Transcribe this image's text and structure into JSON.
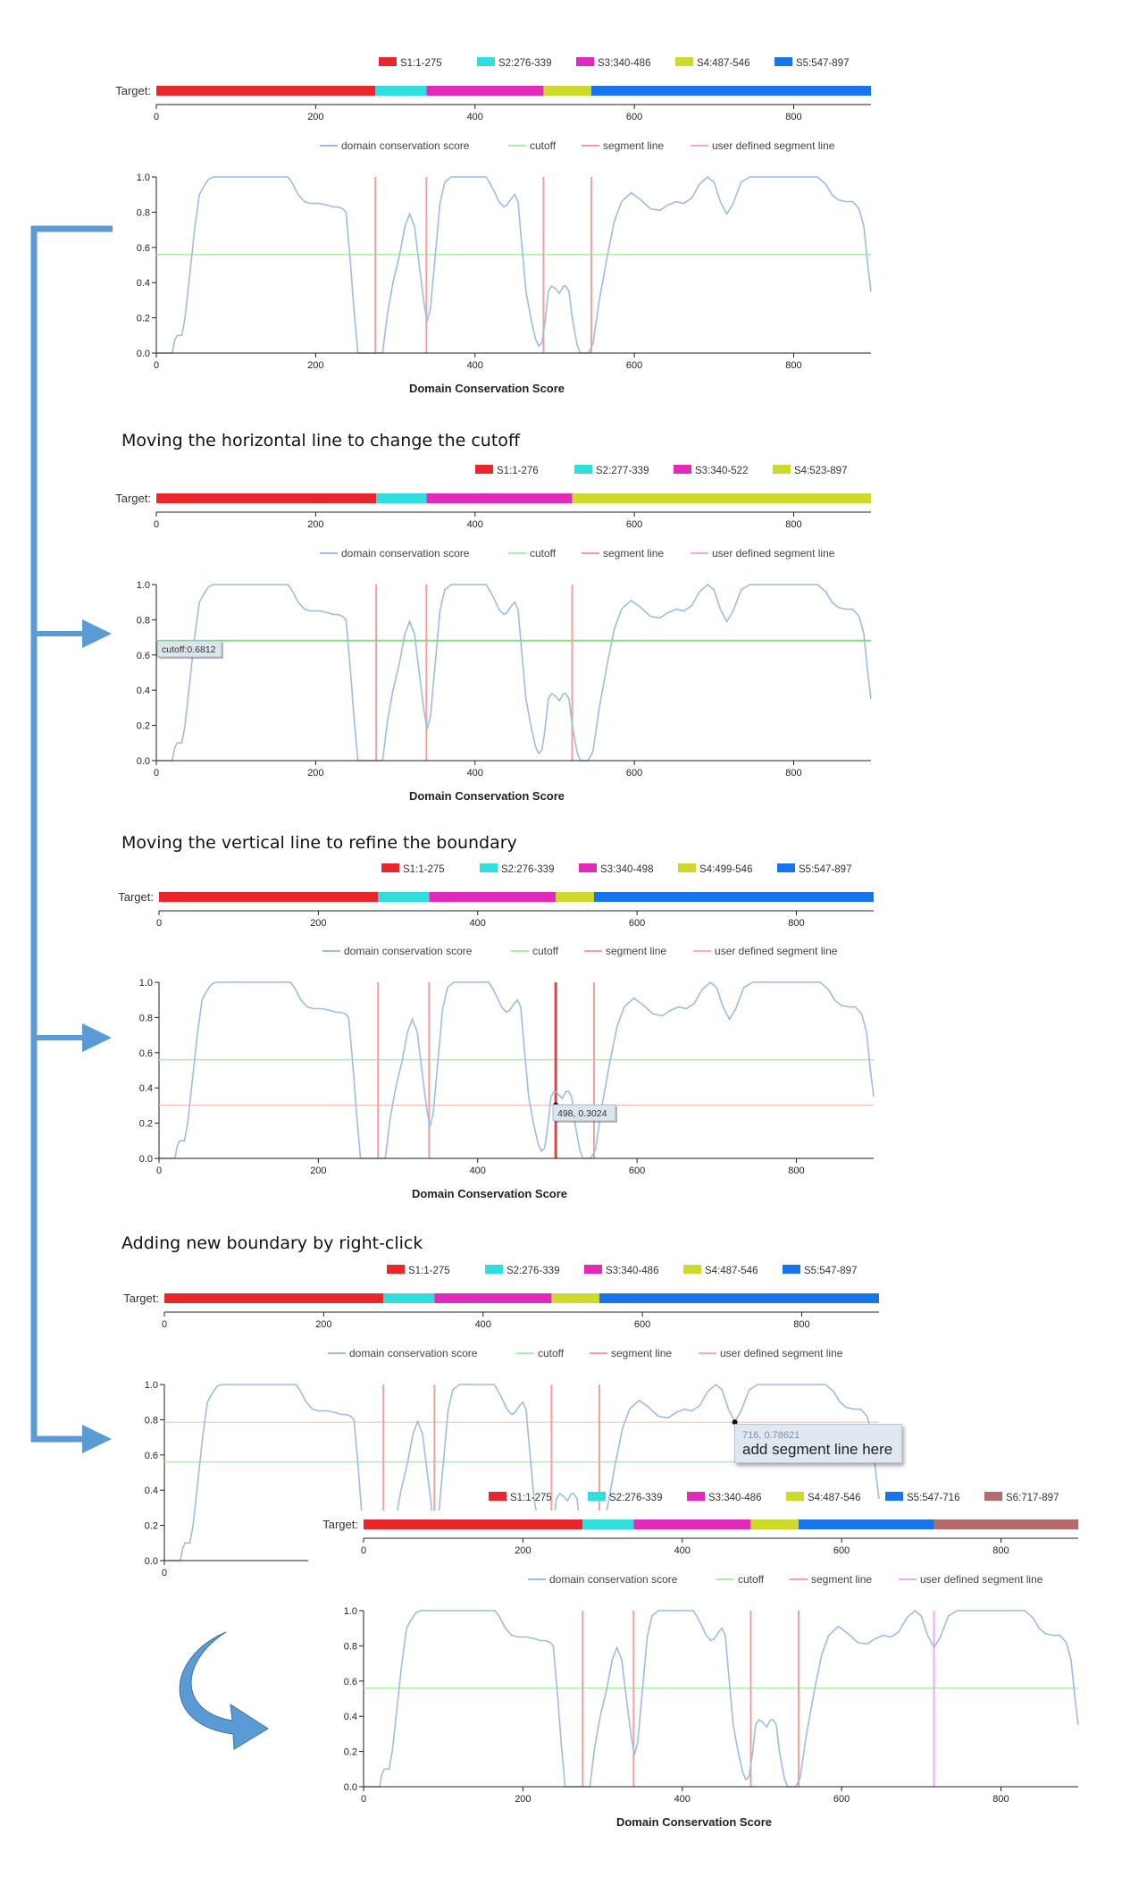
{
  "colors": {
    "S1": "#e8262c",
    "S2": "#30dedd",
    "S3": "#e22aba",
    "S4": "#cdd92b",
    "S5": "#1774eb",
    "S6": "#b56b6b",
    "conservation": "#9cbce8",
    "cutoff": "#a8f0a8",
    "segment": "#f4a09a",
    "user_segment": "#f3a8ee",
    "active_segment": "#ee3b3b",
    "arrow": "#5b9bd5"
  },
  "legend_labels": {
    "conservation": "domain conservation score",
    "cutoff": "cutoff",
    "segment": "segment line",
    "user_segment": "user defined segment line"
  },
  "target_label": "Target:",
  "xlabel": "Domain Conservation Score",
  "x_ticks": [
    "0",
    "200",
    "400",
    "600",
    "800"
  ],
  "y_ticks": [
    "0.0",
    "0.2",
    "0.4",
    "0.6",
    "0.8",
    "1.0"
  ],
  "captions": {
    "cutoff": "Moving the horizontal line to change the cutoff",
    "vertical": "Moving  the vertical line to refine the boundary",
    "rightclick": "Adding new boundary by right-click"
  },
  "tooltips": {
    "cutoff": "cutoff:0.6812",
    "vertical": "498, 0.3024",
    "rightclick_coords": "716, 0.78621",
    "rightclick_action": "add segment line here"
  },
  "chart_data": [
    {
      "type": "line",
      "title": "Domain Conservation Score",
      "segments": [
        {
          "name": "S1:1-275",
          "start": 1,
          "end": 275
        },
        {
          "name": "S2:276-339",
          "start": 276,
          "end": 339
        },
        {
          "name": "S3:340-486",
          "start": 340,
          "end": 486
        },
        {
          "name": "S4:487-546",
          "start": 487,
          "end": 546
        },
        {
          "name": "S5:547-897",
          "start": 547,
          "end": 897
        }
      ],
      "cutoff": 0.56,
      "segment_lines": [
        275,
        339,
        486,
        546
      ],
      "xlim": [
        0,
        897
      ],
      "ylim": [
        0,
        1
      ]
    },
    {
      "type": "line",
      "title": "Domain Conservation Score",
      "segments": [
        {
          "name": "S1:1-276",
          "start": 1,
          "end": 276
        },
        {
          "name": "S2:277-339",
          "start": 277,
          "end": 339
        },
        {
          "name": "S3:340-522",
          "start": 340,
          "end": 522
        },
        {
          "name": "S4:523-897",
          "start": 523,
          "end": 897
        }
      ],
      "cutoff": 0.6812,
      "segment_lines": [
        276,
        339,
        522
      ],
      "xlim": [
        0,
        897
      ],
      "ylim": [
        0,
        1
      ]
    },
    {
      "type": "line",
      "title": "Domain Conservation Score",
      "segments": [
        {
          "name": "S1:1-275",
          "start": 1,
          "end": 275
        },
        {
          "name": "S2:276-339",
          "start": 276,
          "end": 339
        },
        {
          "name": "S3:340-498",
          "start": 340,
          "end": 498
        },
        {
          "name": "S4:499-546",
          "start": 499,
          "end": 546
        },
        {
          "name": "S5:547-897",
          "start": 547,
          "end": 897
        }
      ],
      "cutoff": 0.56,
      "segment_lines": [
        275,
        339,
        498,
        546
      ],
      "active_line": 498,
      "cursor_point": [
        498,
        0.3024
      ],
      "xlim": [
        0,
        897
      ],
      "ylim": [
        0,
        1
      ]
    },
    {
      "type": "line",
      "title": "",
      "segments": [
        {
          "name": "S1:1-275",
          "start": 1,
          "end": 275
        },
        {
          "name": "S2:276-339",
          "start": 276,
          "end": 339
        },
        {
          "name": "S3:340-486",
          "start": 340,
          "end": 486
        },
        {
          "name": "S4:487-546",
          "start": 487,
          "end": 546
        },
        {
          "name": "S5:547-897",
          "start": 547,
          "end": 897
        }
      ],
      "cutoff": 0.56,
      "segment_lines": [
        275,
        339,
        486,
        546
      ],
      "cursor_point": [
        716,
        0.78621
      ],
      "xlim": [
        0,
        897
      ],
      "ylim": [
        0,
        1
      ]
    },
    {
      "type": "line",
      "title": "Domain Conservation Score",
      "segments": [
        {
          "name": "S1:1-275",
          "start": 1,
          "end": 275
        },
        {
          "name": "S2:276-339",
          "start": 276,
          "end": 339
        },
        {
          "name": "S3:340-486",
          "start": 340,
          "end": 486
        },
        {
          "name": "S4:487-546",
          "start": 487,
          "end": 546
        },
        {
          "name": "S5:547-716",
          "start": 547,
          "end": 716
        },
        {
          "name": "S6:717-897",
          "start": 717,
          "end": 897
        }
      ],
      "cutoff": 0.56,
      "segment_lines": [
        275,
        339,
        486,
        546
      ],
      "user_segment_lines": [
        716
      ],
      "xlim": [
        0,
        897
      ],
      "ylim": [
        0,
        1
      ]
    }
  ],
  "conservation_curve": [
    [
      0,
      0
    ],
    [
      20,
      0
    ],
    [
      23,
      0.07
    ],
    [
      26,
      0.1
    ],
    [
      32,
      0.1
    ],
    [
      36,
      0.2
    ],
    [
      42,
      0.45
    ],
    [
      48,
      0.7
    ],
    [
      54,
      0.9
    ],
    [
      60,
      0.95
    ],
    [
      66,
      0.99
    ],
    [
      72,
      1
    ],
    [
      165,
      1
    ],
    [
      170,
      0.97
    ],
    [
      178,
      0.9
    ],
    [
      186,
      0.86
    ],
    [
      194,
      0.85
    ],
    [
      205,
      0.85
    ],
    [
      215,
      0.84
    ],
    [
      222,
      0.83
    ],
    [
      228,
      0.83
    ],
    [
      234,
      0.82
    ],
    [
      238,
      0.8
    ],
    [
      243,
      0.55
    ],
    [
      248,
      0.25
    ],
    [
      253,
      0
    ],
    [
      284,
      0
    ],
    [
      290,
      0.22
    ],
    [
      297,
      0.4
    ],
    [
      305,
      0.55
    ],
    [
      312,
      0.72
    ],
    [
      318,
      0.79
    ],
    [
      324,
      0.72
    ],
    [
      330,
      0.5
    ],
    [
      336,
      0.28
    ],
    [
      340,
      0.18
    ],
    [
      344,
      0.25
    ],
    [
      350,
      0.55
    ],
    [
      356,
      0.85
    ],
    [
      362,
      0.97
    ],
    [
      370,
      1
    ],
    [
      414,
      1
    ],
    [
      418,
      0.97
    ],
    [
      424,
      0.92
    ],
    [
      430,
      0.86
    ],
    [
      436,
      0.83
    ],
    [
      440,
      0.84
    ],
    [
      446,
      0.88
    ],
    [
      450,
      0.9
    ],
    [
      454,
      0.86
    ],
    [
      458,
      0.65
    ],
    [
      464,
      0.35
    ],
    [
      470,
      0.2
    ],
    [
      476,
      0.08
    ],
    [
      480,
      0.04
    ],
    [
      484,
      0.06
    ],
    [
      488,
      0.18
    ],
    [
      492,
      0.35
    ],
    [
      496,
      0.38
    ],
    [
      500,
      0.37
    ],
    [
      506,
      0.34
    ],
    [
      511,
      0.38
    ],
    [
      514,
      0.38
    ],
    [
      518,
      0.35
    ],
    [
      522,
      0.2
    ],
    [
      528,
      0.05
    ],
    [
      532,
      0
    ],
    [
      542,
      0
    ],
    [
      548,
      0.05
    ],
    [
      556,
      0.3
    ],
    [
      566,
      0.55
    ],
    [
      575,
      0.75
    ],
    [
      584,
      0.86
    ],
    [
      596,
      0.91
    ],
    [
      608,
      0.87
    ],
    [
      620,
      0.82
    ],
    [
      632,
      0.81
    ],
    [
      642,
      0.84
    ],
    [
      652,
      0.86
    ],
    [
      662,
      0.85
    ],
    [
      672,
      0.88
    ],
    [
      682,
      0.96
    ],
    [
      692,
      1
    ],
    [
      700,
      0.97
    ],
    [
      708,
      0.86
    ],
    [
      716,
      0.79
    ],
    [
      724,
      0.85
    ],
    [
      734,
      0.97
    ],
    [
      745,
      1
    ],
    [
      830,
      1
    ],
    [
      840,
      0.96
    ],
    [
      848,
      0.9
    ],
    [
      856,
      0.87
    ],
    [
      866,
      0.86
    ],
    [
      874,
      0.86
    ],
    [
      882,
      0.82
    ],
    [
      888,
      0.72
    ],
    [
      893,
      0.5
    ],
    [
      897,
      0.35
    ]
  ]
}
